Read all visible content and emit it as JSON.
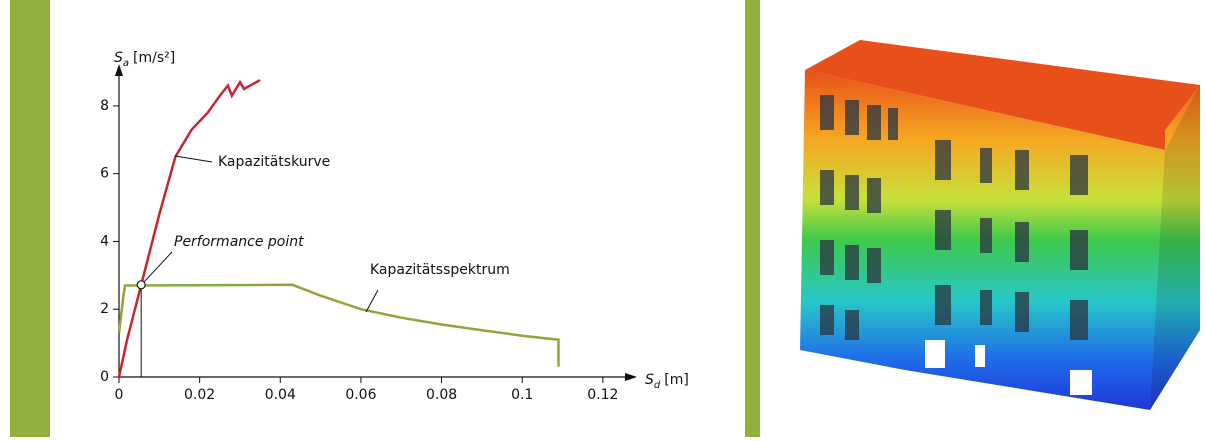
{
  "chart_data": {
    "type": "line",
    "x_label": {
      "symbol": "S",
      "subscript": "d",
      "unit": "[m]"
    },
    "y_label": {
      "symbol": "S",
      "subscript": "a",
      "unit": "[m/s²]"
    },
    "xlim": [
      0,
      0.125
    ],
    "xticks": [
      0,
      0.02,
      0.04,
      0.06,
      0.08,
      0.1,
      0.12
    ],
    "ylim": [
      0,
      9
    ],
    "yticks": [
      0,
      2,
      4,
      6,
      8
    ],
    "series": [
      {
        "name": "Kapazitätskurve",
        "color": "#c8262f",
        "x": [
          0,
          0.002,
          0.0055,
          0.01,
          0.014,
          0.018,
          0.022,
          0.025,
          0.027,
          0.028,
          0.03,
          0.031,
          0.035
        ],
        "values": [
          0,
          1.1,
          2.72,
          4.8,
          6.5,
          7.3,
          7.8,
          8.3,
          8.6,
          8.3,
          8.7,
          8.5,
          8.76
        ]
      },
      {
        "name": "Kapazitätsspektrum",
        "color": "#8aa83c",
        "x": [
          0,
          0.001,
          0.0015,
          0.043,
          0.05,
          0.06,
          0.07,
          0.08,
          0.09,
          0.1,
          0.109,
          0.109
        ],
        "values": [
          1.3,
          2.3,
          2.7,
          2.72,
          2.4,
          2.0,
          1.75,
          1.55,
          1.38,
          1.22,
          1.1,
          0.3
        ]
      }
    ],
    "performance_point": {
      "label": "Performance point",
      "x": 0.0055,
      "y": 2.72
    }
  }
}
